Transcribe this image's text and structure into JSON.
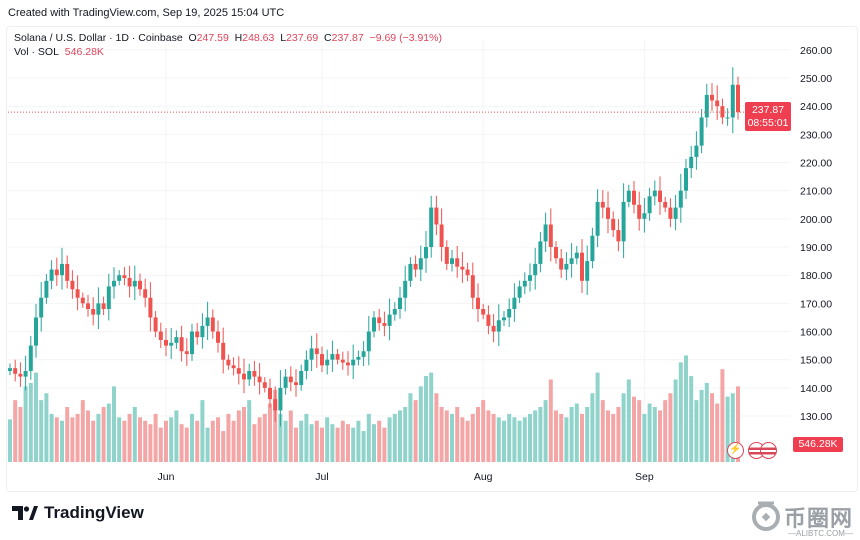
{
  "header": {
    "created": "Created with TradingView.com, Sep 19, 2025 15:04 UTC"
  },
  "legend": {
    "symbol": "Solana / U.S. Dollar · 1D · Coinbase",
    "o_label": "O",
    "o": "247.59",
    "h_label": "H",
    "h": "248.63",
    "l_label": "L",
    "l": "237.69",
    "c_label": "C",
    "c": "237.87",
    "change": "−9.69 (−3.91%)",
    "vol_label": "Vol · SOL",
    "vol": "546.28K"
  },
  "price_label": {
    "price": "237.87",
    "countdown": "08:55:01"
  },
  "volume_label": "546.28K",
  "brand": {
    "name": "TradingView"
  },
  "watermark": {
    "cn": "币圈网",
    "en": "—ALIBTC.COM—"
  },
  "colors": {
    "up": "#26a69a",
    "down": "#ef5350",
    "up_vol": "#8fd3cb",
    "down_vol": "#f4a6a6"
  },
  "chart_data": {
    "type": "candlestick",
    "title": "Solana / U.S. Dollar · 1D · Coinbase",
    "start_date": "2025-05-02",
    "end_date": "2025-09-19",
    "ylim": [
      121,
      264
    ],
    "yticks": [
      "260.00",
      "250.00",
      "240.00",
      "230.00",
      "220.00",
      "210.00",
      "200.00",
      "190.00",
      "180.00",
      "170.00",
      "160.00",
      "150.00",
      "140.00",
      "130.00"
    ],
    "xticks": [
      {
        "label": "Jun",
        "day": 30
      },
      {
        "label": "Jul",
        "day": 60
      },
      {
        "label": "Aug",
        "day": 91
      },
      {
        "label": "Sep",
        "day": 122
      }
    ],
    "first_open": 146,
    "close": [
      147,
      145,
      144,
      146,
      155,
      165,
      172,
      178,
      182,
      180,
      184,
      178,
      175,
      172,
      170,
      168,
      166,
      170,
      168,
      176,
      178,
      180,
      179,
      176,
      178,
      175,
      172,
      165,
      160,
      157,
      155,
      156,
      158,
      153,
      152,
      160,
      158,
      162,
      165,
      160,
      156,
      150,
      148,
      147,
      145,
      143,
      146,
      144,
      142,
      140,
      136,
      132,
      140,
      144,
      142,
      141,
      146,
      150,
      154,
      152,
      148,
      150,
      152,
      150,
      149,
      148,
      150,
      151,
      153,
      160,
      165,
      163,
      162,
      166,
      168,
      172,
      178,
      184,
      182,
      186,
      190,
      204,
      198,
      190,
      184,
      186,
      183,
      182,
      180,
      172,
      168,
      166,
      162,
      160,
      164,
      165,
      168,
      172,
      176,
      178,
      180,
      184,
      192,
      198,
      190,
      186,
      182,
      184,
      186,
      188,
      178,
      185,
      194,
      206,
      204,
      200,
      196,
      192,
      206,
      210,
      205,
      200,
      202,
      208,
      210,
      206,
      204,
      200,
      204,
      210,
      218,
      222,
      226,
      236,
      244,
      242,
      240,
      236,
      236,
      247.59,
      237.87
    ],
    "volume_k": [
      620,
      900,
      800,
      1100,
      1150,
      1300,
      900,
      1000,
      700,
      650,
      600,
      800,
      650,
      700,
      900,
      750,
      600,
      700,
      800,
      850,
      1100,
      650,
      600,
      700,
      800,
      650,
      600,
      550,
      700,
      500,
      600,
      650,
      750,
      550,
      500,
      700,
      600,
      900,
      500,
      600,
      650,
      450,
      700,
      600,
      750,
      800,
      900,
      550,
      650,
      700,
      850,
      1050,
      700,
      600,
      750,
      500,
      600,
      700,
      550,
      600,
      500,
      650,
      550,
      500,
      600,
      550,
      500,
      600,
      450,
      700,
      550,
      600,
      500,
      650,
      700,
      750,
      800,
      1000,
      900,
      1100,
      1250,
      1300,
      1000,
      800,
      750,
      700,
      800,
      650,
      600,
      700,
      800,
      900,
      750,
      700,
      650,
      600,
      700,
      650,
      600,
      650,
      700,
      750,
      800,
      900,
      1200,
      750,
      700,
      650,
      800,
      850,
      700,
      800,
      1000,
      1300,
      900,
      750,
      700,
      800,
      1000,
      1200,
      950,
      900,
      700,
      850,
      800,
      750,
      900,
      1000,
      1200,
      1450,
      1550,
      1250,
      900,
      1050,
      1150,
      1000,
      850,
      1350,
      950,
      1000,
      1100,
      900,
      546.28
    ]
  }
}
